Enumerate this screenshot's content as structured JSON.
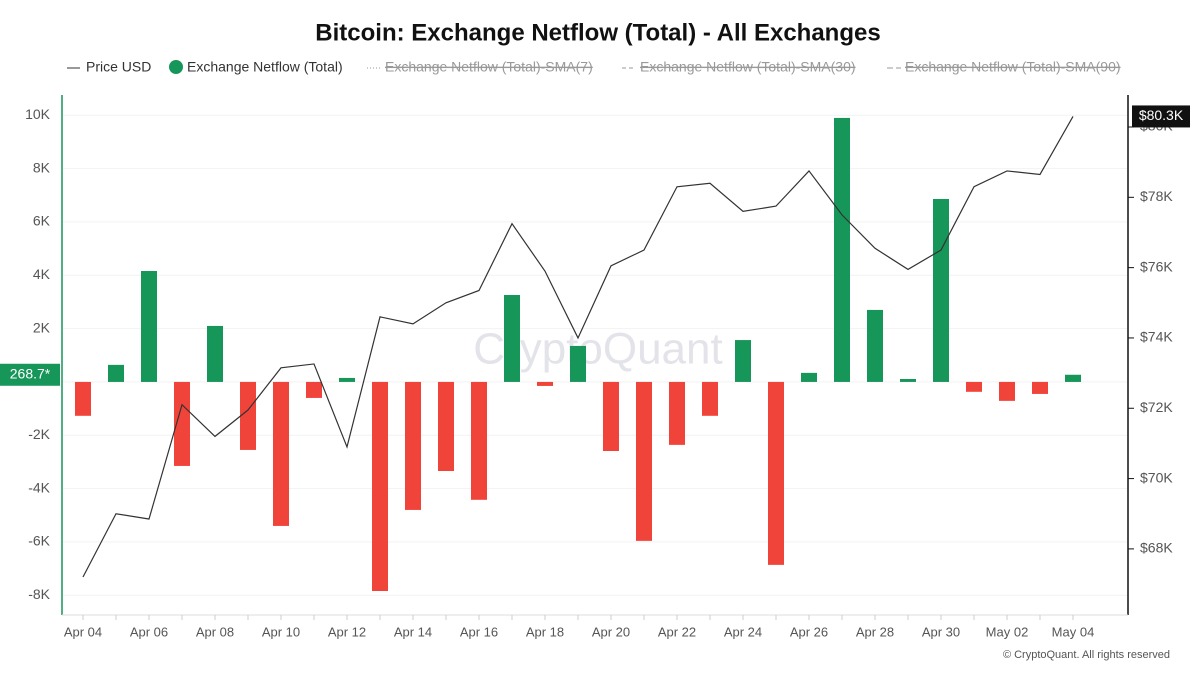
{
  "chart_data": {
    "type": "bar",
    "title": "Bitcoin: Exchange Netflow (Total) - All Exchanges",
    "categories": [
      "Apr 04",
      null,
      "Apr 06",
      null,
      "Apr 08",
      null,
      "Apr 10",
      null,
      "Apr 12",
      null,
      "Apr 14",
      null,
      "Apr 16",
      null,
      "Apr 18",
      null,
      "Apr 20",
      null,
      "Apr 22",
      null,
      "Apr 24",
      null,
      "Apr 26",
      null,
      "Apr 28",
      null,
      "Apr 30",
      null,
      "May 02",
      null,
      "May 04"
    ],
    "series": [
      {
        "name": "Price USD",
        "type": "line",
        "axis": "y2",
        "color": "#333333",
        "values": [
          67200,
          69000,
          68850,
          72100,
          71200,
          71950,
          73150,
          73260,
          70900,
          74600,
          74400,
          75000,
          75350,
          77250,
          75900,
          74000,
          76050,
          76500,
          78300,
          78400,
          77600,
          77750,
          78750,
          77500,
          76550,
          75950,
          76500,
          78300,
          78750,
          78650,
          80300
        ]
      },
      {
        "name": "Exchange Netflow (Total)",
        "type": "bar",
        "color": "#17965a",
        "negative_color": "#f0443a",
        "values": [
          -1270,
          640,
          4160,
          -3150,
          2100,
          -2550,
          -5400,
          -600,
          150,
          -7840,
          -4800,
          -3340,
          -4420,
          3260,
          -150,
          1350,
          -2590,
          -5960,
          -2360,
          -1270,
          1570,
          -6860,
          340,
          9900,
          2700,
          110,
          6860,
          -370,
          -710,
          -450,
          268.7
        ]
      }
    ],
    "legend_hidden": [
      "Exchange Netflow (Total)-SMA(7)",
      "Exchange Netflow (Total)-SMA(30)",
      "Exchange Netflow (Total)-SMA(90)"
    ],
    "current_labels": {
      "netflow": "268.7*",
      "price": "$80.3K"
    },
    "ylim": [
      -8740,
      10760
    ],
    "yticks": [
      {
        "value": -8000,
        "label": "-8K"
      },
      {
        "value": -6000,
        "label": "-6K"
      },
      {
        "value": -4000,
        "label": "-4K"
      },
      {
        "value": -2000,
        "label": "-2K"
      },
      0,
      {
        "value": 2000,
        "label": "2K"
      },
      {
        "value": 4000,
        "label": "4K"
      },
      {
        "value": 6000,
        "label": "6K"
      },
      {
        "value": 8000,
        "label": "8K"
      },
      {
        "value": 10000,
        "label": "10K"
      }
    ],
    "y2lim": [
      66120,
      80910
    ],
    "y2ticks": [
      {
        "value": 68000,
        "label": "$68K"
      },
      {
        "value": 70000,
        "label": "$70K"
      },
      {
        "value": 72000,
        "label": "$72K"
      },
      {
        "value": 74000,
        "label": "$74K"
      },
      {
        "value": 76000,
        "label": "$76K"
      },
      {
        "value": 78000,
        "label": "$78K"
      },
      {
        "value": 80000,
        "label": "$80K"
      }
    ],
    "grid": true,
    "watermark": "CryptoQuant",
    "copyright": "© CryptoQuant. All rights reserved"
  }
}
